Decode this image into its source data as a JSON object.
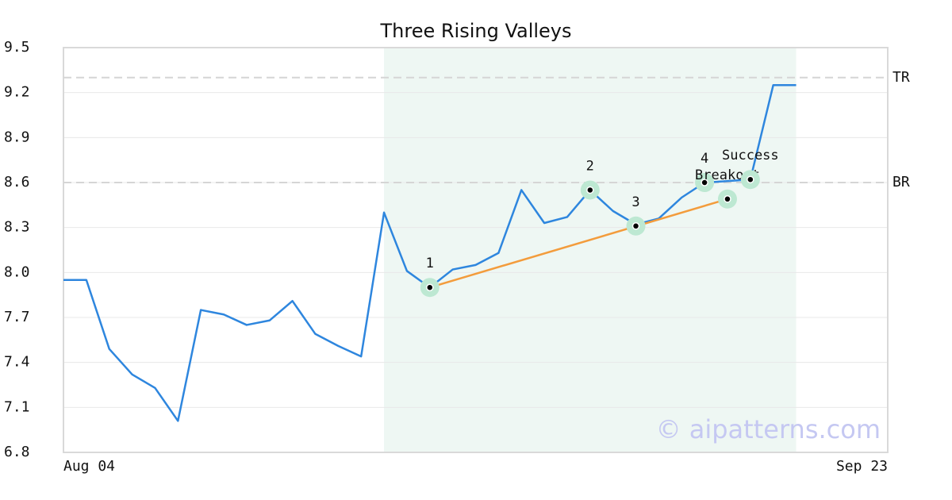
{
  "chart_data": {
    "type": "line",
    "title": "Three Rising Valleys",
    "x": [
      0,
      1,
      2,
      3,
      4,
      5,
      6,
      7,
      8,
      9,
      10,
      11,
      12,
      13,
      14,
      15,
      16,
      17,
      18,
      19,
      20,
      21,
      22,
      23,
      24,
      25,
      26,
      27,
      28,
      29,
      30,
      31,
      32
    ],
    "values": [
      7.95,
      7.95,
      7.49,
      7.32,
      7.23,
      7.01,
      7.75,
      7.72,
      7.65,
      7.68,
      7.81,
      7.59,
      7.51,
      7.44,
      8.4,
      8.01,
      7.9,
      8.02,
      8.05,
      8.13,
      8.55,
      8.33,
      8.37,
      8.55,
      8.41,
      8.32,
      8.36,
      8.5,
      8.6,
      8.61,
      8.62,
      9.25,
      9.25
    ],
    "color": "#2e86de",
    "xlim": [
      0,
      36
    ],
    "xticks": [
      {
        "value": 0,
        "label": "Aug 04"
      },
      {
        "value": 36,
        "label": "Sep 23"
      }
    ],
    "ylim": [
      6.8,
      9.5
    ],
    "yticks": [
      9.5,
      9.2,
      8.9,
      8.6,
      8.3,
      {
        "value": 8,
        "label": "8.0"
      },
      7.7,
      7.4,
      7.1,
      6.8
    ],
    "grid": true,
    "highlight_range": [
      14,
      32
    ],
    "levels": [
      {
        "label": "TR",
        "value": 9.3
      },
      {
        "label": "BR",
        "value": 8.6
      }
    ],
    "trend_line": {
      "x": [
        16,
        29
      ],
      "values": [
        7.9,
        8.49
      ],
      "color": "#f39c3c"
    },
    "pattern_points": [
      {
        "label": "1",
        "x": 16,
        "y": 7.9
      },
      {
        "label": "2",
        "x": 23,
        "y": 8.55
      },
      {
        "label": "3",
        "x": 25,
        "y": 8.31
      },
      {
        "label": "4",
        "x": 28,
        "y": 8.6
      },
      {
        "label": "Breakout",
        "x": 29,
        "y": 8.49
      },
      {
        "label": "Success",
        "x": 30,
        "y": 8.62
      }
    ],
    "watermark": "© aipatterns.com"
  }
}
